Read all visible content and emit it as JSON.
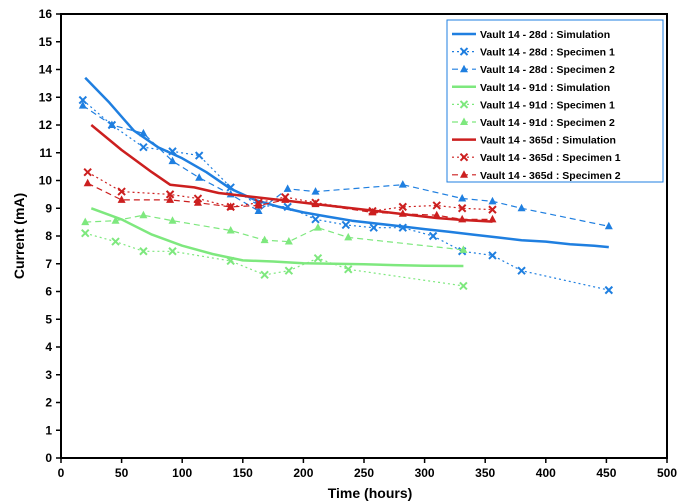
{
  "chart_data": {
    "type": "line",
    "title": "",
    "xlabel": "Time (hours)",
    "ylabel": "Current (mA)",
    "xlim": [
      0,
      500
    ],
    "ylim": [
      0,
      16
    ],
    "xticks": [
      0,
      50,
      100,
      150,
      200,
      250,
      300,
      350,
      400,
      450,
      500
    ],
    "yticks": [
      0,
      1,
      2,
      3,
      4,
      5,
      6,
      7,
      8,
      9,
      10,
      11,
      12,
      13,
      14,
      15,
      16
    ],
    "grid": false,
    "legend_position": "top-right",
    "series": [
      {
        "name": "Vault 14 - 28d : Simulation",
        "color": "#1f7fe0",
        "style": "solid",
        "marker": "none",
        "x": [
          20,
          40,
          60,
          80,
          100,
          120,
          140,
          160,
          180,
          200,
          220,
          240,
          260,
          280,
          300,
          320,
          340,
          360,
          380,
          400,
          420,
          440,
          452
        ],
        "y": [
          13.7,
          12.8,
          11.8,
          11.2,
          10.8,
          10.3,
          9.7,
          9.3,
          9.05,
          8.85,
          8.7,
          8.55,
          8.45,
          8.35,
          8.25,
          8.15,
          8.05,
          7.95,
          7.85,
          7.8,
          7.7,
          7.65,
          7.6
        ]
      },
      {
        "name": "Vault 14 - 28d : Specimen 1",
        "color": "#1f7fe0",
        "style": "dotted",
        "marker": "x",
        "x": [
          18,
          42,
          68,
          92,
          114,
          140,
          163,
          187,
          210,
          235,
          258,
          282,
          307,
          331,
          356,
          380,
          452
        ],
        "y": [
          12.9,
          12.0,
          11.2,
          11.05,
          10.9,
          9.75,
          9.1,
          9.05,
          8.6,
          8.4,
          8.3,
          8.3,
          8.0,
          7.45,
          7.3,
          6.75,
          6.05
        ]
      },
      {
        "name": "Vault 14 - 28d : Specimen 2",
        "color": "#1f7fe0",
        "style": "dashed",
        "marker": "triangle",
        "x": [
          18,
          42,
          68,
          92,
          114,
          140,
          163,
          187,
          210,
          282,
          331,
          356,
          380,
          452
        ],
        "y": [
          12.7,
          12.0,
          11.7,
          10.7,
          10.1,
          9.5,
          8.9,
          9.7,
          9.6,
          9.85,
          9.35,
          9.25,
          9.0,
          8.35
        ]
      },
      {
        "name": "Vault 14 - 91d : Simulation",
        "color": "#7ee87e",
        "style": "solid",
        "marker": "none",
        "x": [
          25,
          50,
          75,
          100,
          125,
          150,
          175,
          200,
          225,
          250,
          275,
          300,
          332
        ],
        "y": [
          9.0,
          8.6,
          8.05,
          7.65,
          7.35,
          7.12,
          7.08,
          7.02,
          7.0,
          6.98,
          6.95,
          6.93,
          6.92
        ]
      },
      {
        "name": "Vault 14 - 91d : Specimen 1",
        "color": "#7ee87e",
        "style": "dotted",
        "marker": "x",
        "x": [
          20,
          45,
          68,
          92,
          140,
          168,
          188,
          212,
          237,
          332
        ],
        "y": [
          8.1,
          7.8,
          7.45,
          7.45,
          7.1,
          6.6,
          6.75,
          7.2,
          6.8,
          6.2
        ]
      },
      {
        "name": "Vault 14 - 91d : Specimen 2",
        "color": "#7ee87e",
        "style": "dashed",
        "marker": "triangle",
        "x": [
          20,
          45,
          68,
          92,
          140,
          168,
          188,
          212,
          237,
          332
        ],
        "y": [
          8.5,
          8.55,
          8.75,
          8.55,
          8.2,
          7.85,
          7.8,
          8.3,
          7.95,
          7.5
        ]
      },
      {
        "name": "Vault 14 - 365d : Simulation",
        "color": "#cc1f1f",
        "style": "solid",
        "marker": "none",
        "x": [
          25,
          50,
          75,
          90,
          110,
          130,
          150,
          170,
          190,
          210,
          230,
          250,
          270,
          290,
          310,
          330,
          356
        ],
        "y": [
          12.0,
          11.1,
          10.3,
          9.85,
          9.75,
          9.55,
          9.45,
          9.35,
          9.25,
          9.15,
          9.05,
          8.95,
          8.85,
          8.75,
          8.65,
          8.58,
          8.52
        ]
      },
      {
        "name": "Vault 14 - 365d : Specimen 1",
        "color": "#cc1f1f",
        "style": "dotted",
        "marker": "x",
        "x": [
          22,
          50,
          90,
          113,
          140,
          163,
          185,
          210,
          257,
          282,
          310,
          331,
          356
        ],
        "y": [
          10.3,
          9.6,
          9.5,
          9.35,
          9.05,
          9.2,
          9.4,
          9.2,
          8.9,
          9.05,
          9.1,
          9.0,
          8.95
        ]
      },
      {
        "name": "Vault 14 - 365d : Specimen 2",
        "color": "#cc1f1f",
        "style": "dashed",
        "marker": "triangle",
        "x": [
          22,
          50,
          90,
          113,
          140,
          163,
          185,
          210,
          257,
          282,
          310,
          331,
          356
        ],
        "y": [
          9.9,
          9.3,
          9.3,
          9.2,
          9.05,
          9.1,
          9.3,
          9.15,
          8.85,
          8.8,
          8.75,
          8.6,
          8.6
        ]
      }
    ]
  }
}
